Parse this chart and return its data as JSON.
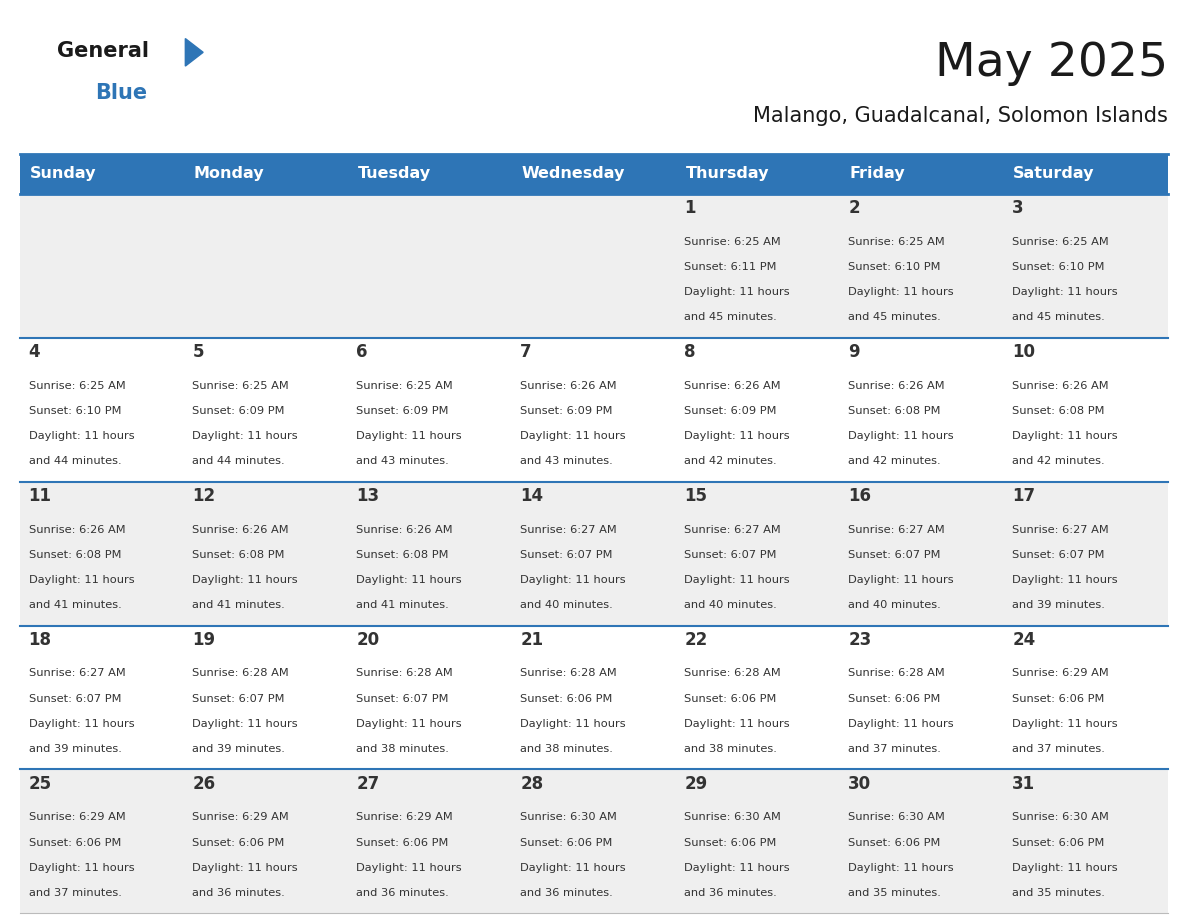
{
  "title": "May 2025",
  "subtitle": "Malango, Guadalcanal, Solomon Islands",
  "header_bg": "#2E75B6",
  "header_text_color": "#FFFFFF",
  "day_names": [
    "Sunday",
    "Monday",
    "Tuesday",
    "Wednesday",
    "Thursday",
    "Friday",
    "Saturday"
  ],
  "cell_bg_odd": "#EFEFEF",
  "cell_bg_even": "#FFFFFF",
  "cell_text_color": "#333333",
  "grid_color": "#2E75B6",
  "title_color": "#1A1A1A",
  "subtitle_color": "#1A1A1A",
  "days": [
    {
      "day": 1,
      "col": 4,
      "row": 0,
      "sunrise": "6:25 AM",
      "sunset": "6:11 PM",
      "daylight": "11 hours and 45 minutes."
    },
    {
      "day": 2,
      "col": 5,
      "row": 0,
      "sunrise": "6:25 AM",
      "sunset": "6:10 PM",
      "daylight": "11 hours and 45 minutes."
    },
    {
      "day": 3,
      "col": 6,
      "row": 0,
      "sunrise": "6:25 AM",
      "sunset": "6:10 PM",
      "daylight": "11 hours and 45 minutes."
    },
    {
      "day": 4,
      "col": 0,
      "row": 1,
      "sunrise": "6:25 AM",
      "sunset": "6:10 PM",
      "daylight": "11 hours and 44 minutes."
    },
    {
      "day": 5,
      "col": 1,
      "row": 1,
      "sunrise": "6:25 AM",
      "sunset": "6:09 PM",
      "daylight": "11 hours and 44 minutes."
    },
    {
      "day": 6,
      "col": 2,
      "row": 1,
      "sunrise": "6:25 AM",
      "sunset": "6:09 PM",
      "daylight": "11 hours and 43 minutes."
    },
    {
      "day": 7,
      "col": 3,
      "row": 1,
      "sunrise": "6:26 AM",
      "sunset": "6:09 PM",
      "daylight": "11 hours and 43 minutes."
    },
    {
      "day": 8,
      "col": 4,
      "row": 1,
      "sunrise": "6:26 AM",
      "sunset": "6:09 PM",
      "daylight": "11 hours and 42 minutes."
    },
    {
      "day": 9,
      "col": 5,
      "row": 1,
      "sunrise": "6:26 AM",
      "sunset": "6:08 PM",
      "daylight": "11 hours and 42 minutes."
    },
    {
      "day": 10,
      "col": 6,
      "row": 1,
      "sunrise": "6:26 AM",
      "sunset": "6:08 PM",
      "daylight": "11 hours and 42 minutes."
    },
    {
      "day": 11,
      "col": 0,
      "row": 2,
      "sunrise": "6:26 AM",
      "sunset": "6:08 PM",
      "daylight": "11 hours and 41 minutes."
    },
    {
      "day": 12,
      "col": 1,
      "row": 2,
      "sunrise": "6:26 AM",
      "sunset": "6:08 PM",
      "daylight": "11 hours and 41 minutes."
    },
    {
      "day": 13,
      "col": 2,
      "row": 2,
      "sunrise": "6:26 AM",
      "sunset": "6:08 PM",
      "daylight": "11 hours and 41 minutes."
    },
    {
      "day": 14,
      "col": 3,
      "row": 2,
      "sunrise": "6:27 AM",
      "sunset": "6:07 PM",
      "daylight": "11 hours and 40 minutes."
    },
    {
      "day": 15,
      "col": 4,
      "row": 2,
      "sunrise": "6:27 AM",
      "sunset": "6:07 PM",
      "daylight": "11 hours and 40 minutes."
    },
    {
      "day": 16,
      "col": 5,
      "row": 2,
      "sunrise": "6:27 AM",
      "sunset": "6:07 PM",
      "daylight": "11 hours and 40 minutes."
    },
    {
      "day": 17,
      "col": 6,
      "row": 2,
      "sunrise": "6:27 AM",
      "sunset": "6:07 PM",
      "daylight": "11 hours and 39 minutes."
    },
    {
      "day": 18,
      "col": 0,
      "row": 3,
      "sunrise": "6:27 AM",
      "sunset": "6:07 PM",
      "daylight": "11 hours and 39 minutes."
    },
    {
      "day": 19,
      "col": 1,
      "row": 3,
      "sunrise": "6:28 AM",
      "sunset": "6:07 PM",
      "daylight": "11 hours and 39 minutes."
    },
    {
      "day": 20,
      "col": 2,
      "row": 3,
      "sunrise": "6:28 AM",
      "sunset": "6:07 PM",
      "daylight": "11 hours and 38 minutes."
    },
    {
      "day": 21,
      "col": 3,
      "row": 3,
      "sunrise": "6:28 AM",
      "sunset": "6:06 PM",
      "daylight": "11 hours and 38 minutes."
    },
    {
      "day": 22,
      "col": 4,
      "row": 3,
      "sunrise": "6:28 AM",
      "sunset": "6:06 PM",
      "daylight": "11 hours and 38 minutes."
    },
    {
      "day": 23,
      "col": 5,
      "row": 3,
      "sunrise": "6:28 AM",
      "sunset": "6:06 PM",
      "daylight": "11 hours and 37 minutes."
    },
    {
      "day": 24,
      "col": 6,
      "row": 3,
      "sunrise": "6:29 AM",
      "sunset": "6:06 PM",
      "daylight": "11 hours and 37 minutes."
    },
    {
      "day": 25,
      "col": 0,
      "row": 4,
      "sunrise": "6:29 AM",
      "sunset": "6:06 PM",
      "daylight": "11 hours and 37 minutes."
    },
    {
      "day": 26,
      "col": 1,
      "row": 4,
      "sunrise": "6:29 AM",
      "sunset": "6:06 PM",
      "daylight": "11 hours and 36 minutes."
    },
    {
      "day": 27,
      "col": 2,
      "row": 4,
      "sunrise": "6:29 AM",
      "sunset": "6:06 PM",
      "daylight": "11 hours and 36 minutes."
    },
    {
      "day": 28,
      "col": 3,
      "row": 4,
      "sunrise": "6:30 AM",
      "sunset": "6:06 PM",
      "daylight": "11 hours and 36 minutes."
    },
    {
      "day": 29,
      "col": 4,
      "row": 4,
      "sunrise": "6:30 AM",
      "sunset": "6:06 PM",
      "daylight": "11 hours and 36 minutes."
    },
    {
      "day": 30,
      "col": 5,
      "row": 4,
      "sunrise": "6:30 AM",
      "sunset": "6:06 PM",
      "daylight": "11 hours and 35 minutes."
    },
    {
      "day": 31,
      "col": 6,
      "row": 4,
      "sunrise": "6:30 AM",
      "sunset": "6:06 PM",
      "daylight": "11 hours and 35 minutes."
    }
  ]
}
